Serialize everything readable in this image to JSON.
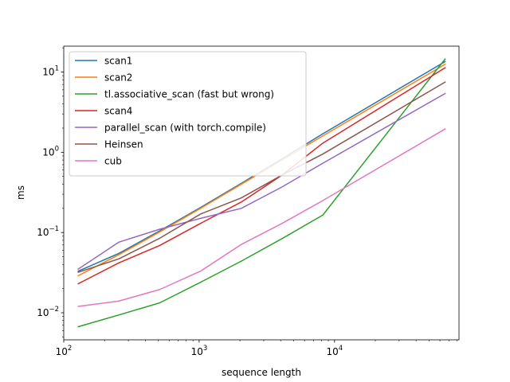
{
  "chart_data": {
    "type": "line",
    "title": "",
    "xlabel": "sequence length",
    "ylabel": "ms",
    "xscale": "log",
    "yscale": "log",
    "xlim": [
      100,
      83000
    ],
    "ylim": [
      0.0046,
      21
    ],
    "x": [
      128,
      256,
      512,
      1024,
      2048,
      4096,
      8192,
      65536
    ],
    "x_ticks": [
      {
        "value": 100,
        "base": "10",
        "exp": "2"
      },
      {
        "value": 1000,
        "base": "10",
        "exp": "3"
      },
      {
        "value": 10000,
        "base": "10",
        "exp": "4"
      }
    ],
    "y_ticks": [
      {
        "value": 0.01,
        "base": "10",
        "exp": "−2"
      },
      {
        "value": 0.1,
        "base": "10",
        "exp": "−1"
      },
      {
        "value": 1,
        "base": "10",
        "exp": "0"
      },
      {
        "value": 10,
        "base": "10",
        "exp": "1"
      }
    ],
    "grid": false,
    "legend_position": "top-left",
    "series": [
      {
        "name": "scan1",
        "color": "#1f77b4",
        "values": [
          0.033,
          0.055,
          0.105,
          0.205,
          0.41,
          0.83,
          1.7,
          13.5
        ]
      },
      {
        "name": "scan2",
        "color": "#ff7f0e",
        "values": [
          0.029,
          0.053,
          0.102,
          0.2,
          0.4,
          0.8,
          1.6,
          12.5
        ]
      },
      {
        "name": "tl.associative_scan (fast but wrong)",
        "color": "#2ca02c",
        "values": [
          0.0067,
          0.0094,
          0.0133,
          0.024,
          0.044,
          0.084,
          0.165,
          14.5
        ]
      },
      {
        "name": "scan4",
        "color": "#d62728",
        "values": [
          0.023,
          0.042,
          0.069,
          0.13,
          0.24,
          0.52,
          1.3,
          11.3
        ]
      },
      {
        "name": "parallel_scan (with torch.compile)",
        "color": "#9467bd",
        "values": [
          0.035,
          0.076,
          0.11,
          0.15,
          0.2,
          0.37,
          0.73,
          5.4
        ]
      },
      {
        "name": "Heinsen",
        "color": "#8c564b",
        "values": [
          0.032,
          0.047,
          0.085,
          0.17,
          0.27,
          0.52,
          0.95,
          7.5
        ]
      },
      {
        "name": "cub",
        "color": "#e377c2",
        "values": [
          0.012,
          0.014,
          0.0195,
          0.033,
          0.071,
          0.13,
          0.25,
          1.95
        ]
      }
    ]
  }
}
